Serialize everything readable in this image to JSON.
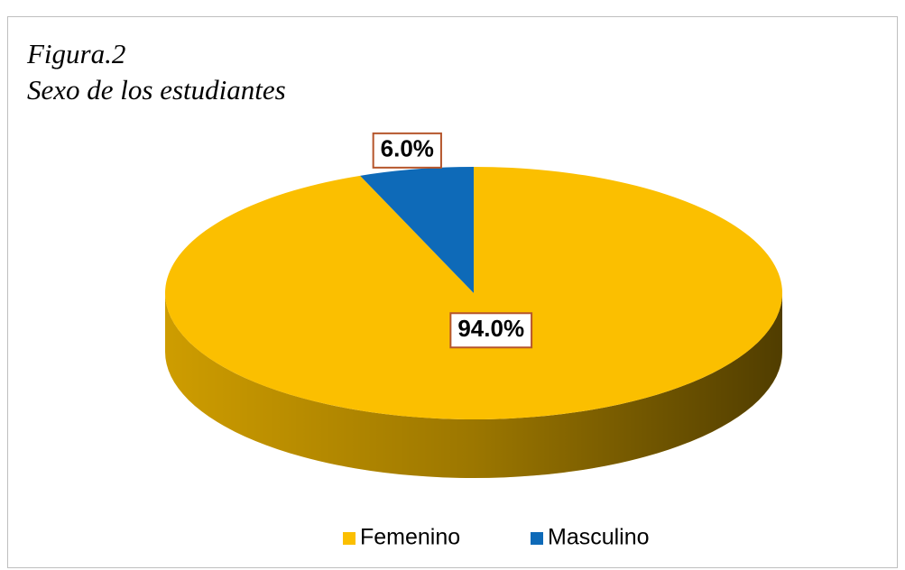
{
  "chart_data": {
    "type": "pie",
    "title": "Figura.2",
    "subtitle": "Sexo de los estudiantes",
    "categories": [
      "Femenino",
      "Masculino"
    ],
    "values": [
      94,
      6
    ],
    "value_labels": [
      "94.0%",
      "6.0%"
    ],
    "colors": [
      "#fbbf00",
      "#0e6ab8"
    ],
    "legend": "bottom"
  }
}
